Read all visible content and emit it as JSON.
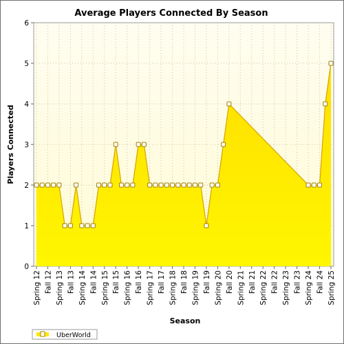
{
  "chart_data": {
    "type": "area",
    "title": "Average Players Connected By Season",
    "xlabel": "Season",
    "ylabel": "Players Connected",
    "ylim": [
      0,
      6
    ],
    "yticks": [
      "0",
      "1",
      "2",
      "3",
      "4",
      "5",
      "6"
    ],
    "grid": true,
    "legend_position": "bottom-left",
    "x_labels": [
      "Spring 12",
      "Fall 12",
      "Spring 13",
      "Fall 13",
      "Spring 14",
      "Fall 14",
      "Spring 15",
      "Fall 15",
      "Spring 16",
      "Fall 16",
      "Spring 17",
      "Fall 17",
      "Spring 18",
      "Fall 18",
      "Spring 19",
      "Fall 19",
      "Spring 20",
      "Fall 20",
      "Spring 21",
      "Fall 21",
      "Spring 22",
      "Fall 22",
      "Spring 23",
      "Fall 23",
      "Spring 24",
      "Fall 24",
      "Spring 25"
    ],
    "series": [
      {
        "name": "UberWorld",
        "color": "#ffe800",
        "line_color": "#d8a800",
        "points": [
          {
            "x": 0.0,
            "y": 2
          },
          {
            "x": 0.5,
            "y": 2
          },
          {
            "x": 1.0,
            "y": 2
          },
          {
            "x": 1.5,
            "y": 2
          },
          {
            "x": 2.0,
            "y": 2
          },
          {
            "x": 2.5,
            "y": 1
          },
          {
            "x": 3.0,
            "y": 1
          },
          {
            "x": 3.5,
            "y": 2
          },
          {
            "x": 4.0,
            "y": 1
          },
          {
            "x": 4.5,
            "y": 1
          },
          {
            "x": 5.0,
            "y": 1
          },
          {
            "x": 5.5,
            "y": 2
          },
          {
            "x": 6.0,
            "y": 2
          },
          {
            "x": 6.5,
            "y": 2
          },
          {
            "x": 7.0,
            "y": 3
          },
          {
            "x": 7.5,
            "y": 2
          },
          {
            "x": 8.0,
            "y": 2
          },
          {
            "x": 8.5,
            "y": 2
          },
          {
            "x": 9.0,
            "y": 3
          },
          {
            "x": 9.5,
            "y": 3
          },
          {
            "x": 10.0,
            "y": 2
          },
          {
            "x": 10.5,
            "y": 2
          },
          {
            "x": 11.0,
            "y": 2
          },
          {
            "x": 11.5,
            "y": 2
          },
          {
            "x": 12.0,
            "y": 2
          },
          {
            "x": 12.5,
            "y": 2
          },
          {
            "x": 13.0,
            "y": 2
          },
          {
            "x": 13.5,
            "y": 2
          },
          {
            "x": 14.0,
            "y": 2
          },
          {
            "x": 14.5,
            "y": 2
          },
          {
            "x": 15.0,
            "y": 1
          },
          {
            "x": 15.5,
            "y": 2
          },
          {
            "x": 16.0,
            "y": 2
          },
          {
            "x": 16.5,
            "y": 3
          },
          {
            "x": 17.0,
            "y": 4
          },
          {
            "x": 24.0,
            "y": 2
          },
          {
            "x": 24.5,
            "y": 2
          },
          {
            "x": 25.0,
            "y": 2
          },
          {
            "x": 25.5,
            "y": 4
          },
          {
            "x": 26.0,
            "y": 5
          }
        ]
      }
    ]
  }
}
